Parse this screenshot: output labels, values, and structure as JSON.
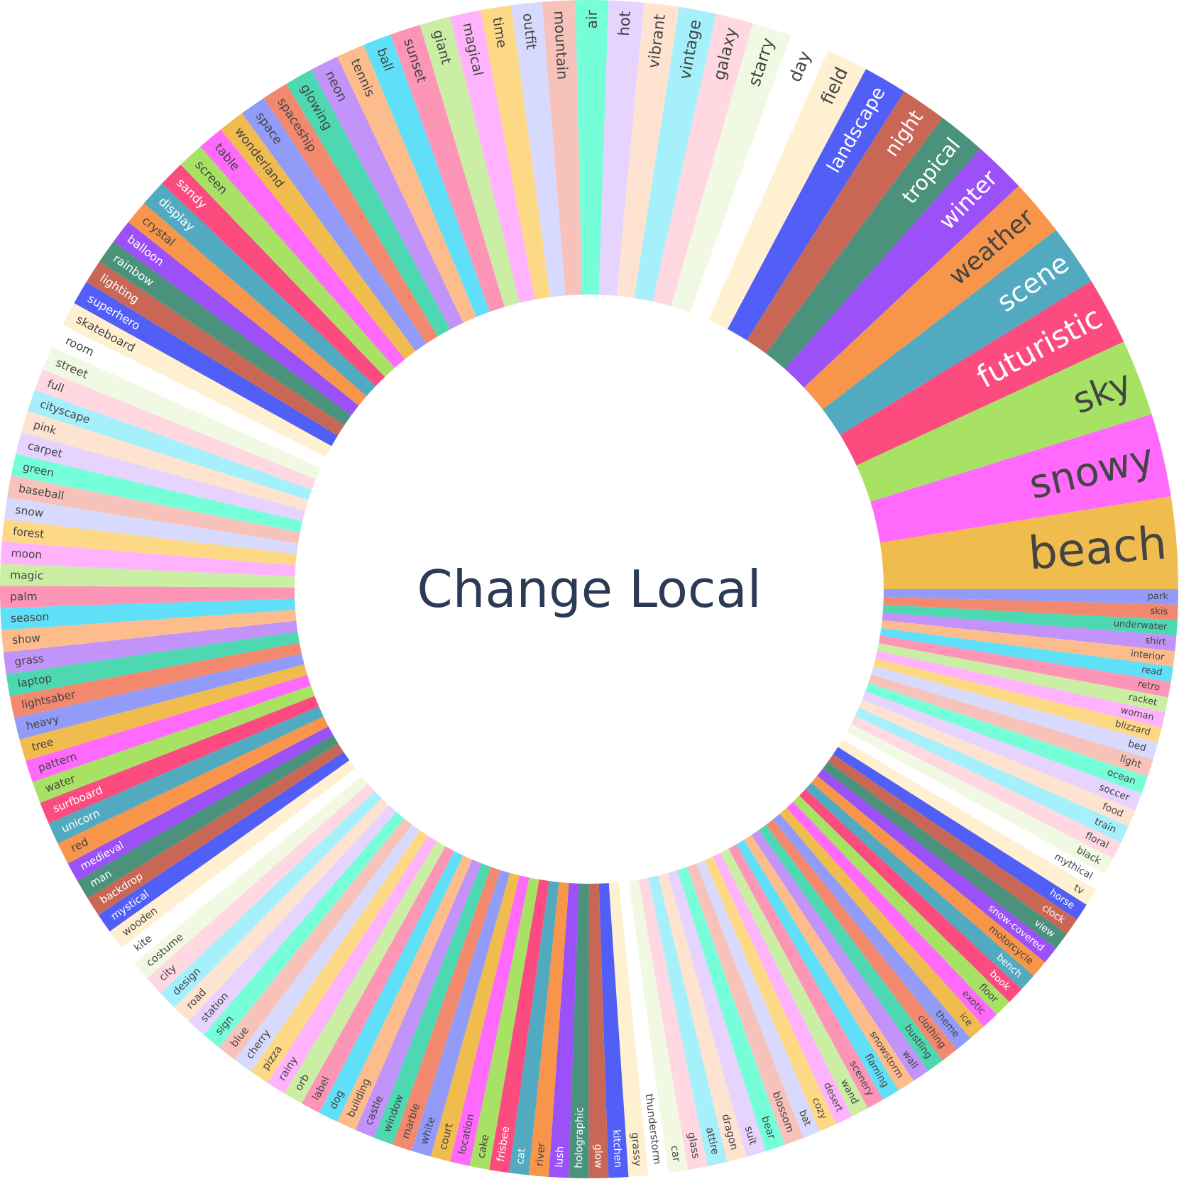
{
  "chart_data": {
    "type": "pie",
    "style": "donut",
    "center_label": "Change Local",
    "start_direction": "right",
    "orientation": "clockwise",
    "words": [
      "park",
      "skis",
      "underwater",
      "shirt",
      "interior",
      "read",
      "retro",
      "racket",
      "woman",
      "blizzard",
      "bed",
      "light",
      "ocean",
      "soccer",
      "food",
      "train",
      "floral",
      "black",
      "mythical",
      "tv",
      "horse",
      "clock",
      "view",
      "snow-covered",
      "motorcycle",
      "bench",
      "book",
      "floor",
      "exotic",
      "ice",
      "theme",
      "clothing",
      "bustling",
      "wall",
      "snowstorm",
      "flaming",
      "scenery",
      "wand",
      "desert",
      "cozy",
      "bat",
      "blossom",
      "bear",
      "suit",
      "dragon",
      "attire",
      "glass",
      "car",
      "thunderstorm",
      "grassy",
      "kitchen",
      "glow",
      "holographic",
      "lush",
      "river",
      "cat",
      "frisbee",
      "cake",
      "location",
      "court",
      "white",
      "marble",
      "window",
      "castle",
      "building",
      "dog",
      "label",
      "orb",
      "rainy",
      "pizza",
      "cherry",
      "blue",
      "sign",
      "station",
      "road",
      "design",
      "city",
      "costume",
      "kite",
      "wooden",
      "mystical",
      "backdrop",
      "man",
      "medieval",
      "red",
      "unicorn",
      "surfboard",
      "water",
      "pattern",
      "tree",
      "heavy",
      "lightsaber",
      "laptop",
      "grass",
      "show",
      "season",
      "palm",
      "magic",
      "moon",
      "forest",
      "snow",
      "baseball",
      "green",
      "carpet",
      "pink",
      "cityscape",
      "full",
      "street",
      "room",
      "skateboard",
      "superhero",
      "lighting",
      "rainbow",
      "balloon",
      "crystal",
      "display",
      "sandy",
      "screen",
      "table",
      "wonderland",
      "space",
      "spaceship",
      "glowing",
      "neon",
      "tennis",
      "ball",
      "sunset",
      "giant",
      "magical",
      "time",
      "outfit",
      "mountain",
      "air",
      "hot",
      "vibrant",
      "vintage",
      "galaxy",
      "starry",
      "day",
      "field",
      "landscape",
      "night",
      "tropical",
      "winter",
      "weather",
      "scene",
      "futuristic",
      "sky",
      "snowy",
      "beach"
    ],
    "values": [
      0.7,
      0.7,
      0.7,
      0.7,
      0.7,
      0.7,
      0.7,
      0.7,
      0.7,
      0.7,
      0.8,
      0.8,
      0.8,
      0.8,
      0.8,
      0.8,
      0.8,
      0.8,
      0.8,
      0.8,
      0.8,
      0.8,
      0.8,
      0.8,
      0.8,
      0.8,
      0.8,
      0.8,
      0.8,
      0.8,
      0.8,
      0.8,
      0.8,
      0.8,
      0.8,
      0.8,
      0.8,
      0.8,
      0.8,
      0.8,
      0.8,
      0.9,
      0.9,
      0.9,
      0.9,
      0.9,
      0.9,
      0.9,
      0.9,
      0.9,
      0.9,
      0.9,
      0.9,
      0.9,
      0.9,
      0.9,
      0.9,
      0.9,
      0.9,
      0.9,
      0.9,
      0.9,
      0.9,
      0.9,
      0.9,
      0.9,
      0.9,
      0.9,
      0.9,
      0.9,
      0.9,
      0.9,
      0.9,
      0.9,
      0.9,
      0.9,
      0.9,
      0.9,
      0.9,
      0.9,
      0.9,
      0.9,
      0.9,
      0.9,
      1.0,
      1.0,
      1.0,
      1.0,
      1.0,
      1.0,
      1.0,
      1.0,
      1.0,
      1.0,
      1.0,
      1.0,
      1.0,
      1.0,
      1.0,
      1.0,
      1.0,
      1.0,
      1.0,
      1.0,
      1.0,
      1.0,
      1.0,
      1.1,
      1.1,
      1.1,
      1.1,
      1.1,
      1.1,
      1.1,
      1.1,
      1.2,
      1.2,
      1.2,
      1.2,
      1.2,
      1.2,
      1.2,
      1.3,
      1.3,
      1.3,
      1.3,
      1.4,
      1.4,
      1.4,
      1.4,
      1.4,
      1.5,
      1.5,
      1.6,
      1.6,
      1.7,
      1.7,
      1.8,
      1.8,
      1.9,
      2.0,
      2.1,
      2.2,
      2.4,
      2.6,
      2.8,
      3.1,
      3.5,
      3.8,
      4.2
    ],
    "palette": [
      "#929cf8",
      "#f2896f",
      "#4dd8b2",
      "#c293f8",
      "#fdbc8b",
      "#5fe0f8",
      "#fd96b6",
      "#cbeea5",
      "#ffb3fc",
      "#fed985",
      "#d7dafd",
      "#f7c2ba",
      "#76fed9",
      "#e6d3fe",
      "#fee3d1",
      "#a6f0fb",
      "#ffd8e2",
      "#f1f9e3",
      "#ffffff",
      "#fff0d1",
      "#525ff7",
      "#c96757",
      "#4b927d",
      "#9c50f7",
      "#f7954b",
      "#52aac1",
      "#fb4b7f",
      "#a7e265",
      "#ff6afd",
      "#f0bc4d"
    ]
  }
}
